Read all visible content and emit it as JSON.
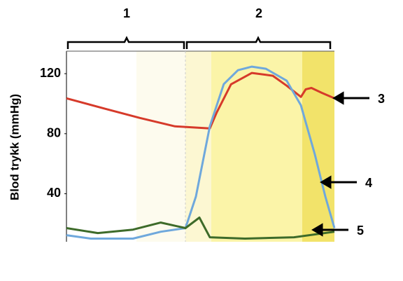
{
  "chart_data": {
    "type": "line",
    "ylabel": "Blod trykk (mmHg)",
    "ylim": [
      8,
      135
    ],
    "yticks": [
      40,
      80,
      120
    ],
    "xlim": [
      0,
      100
    ],
    "annotations": [
      "1",
      "2"
    ],
    "series": [
      {
        "name": "3",
        "color": "#d63a2a",
        "x": [
          0,
          14.4,
          27.4,
          40.5,
          53.5,
          56.1,
          61.4,
          69.2,
          77,
          82.2,
          87.5,
          89.3,
          91.4,
          95.3,
          100
        ],
        "values": [
          103.6,
          96.6,
          90.5,
          84.9,
          83.5,
          94.3,
          112.9,
          120.5,
          118.6,
          112,
          104.5,
          109.6,
          110.5,
          107.2,
          103.6
        ]
      },
      {
        "name": "4",
        "color": "#6fa8dc",
        "x": [
          0,
          9.1,
          24.8,
          35.2,
          44.4,
          48.3,
          53.5,
          58.7,
          64,
          69.2,
          74.4,
          82.2,
          87.5,
          92.7,
          96.6,
          100
        ],
        "values": [
          12.4,
          10.1,
          10.1,
          14.7,
          17.1,
          38.1,
          84.9,
          113,
          122.3,
          124.7,
          123.3,
          115.3,
          98.9,
          66.2,
          38.1,
          17.1
        ]
      },
      {
        "name": "5",
        "color": "#3d6b2a",
        "x": [
          0,
          11.7,
          24.8,
          35.2,
          44.4,
          49.6,
          53.5,
          66.6,
          84.9,
          100
        ],
        "values": [
          17.1,
          13.8,
          16.1,
          20.8,
          17.1,
          24.1,
          11,
          10.1,
          11,
          14.7
        ]
      }
    ]
  }
}
